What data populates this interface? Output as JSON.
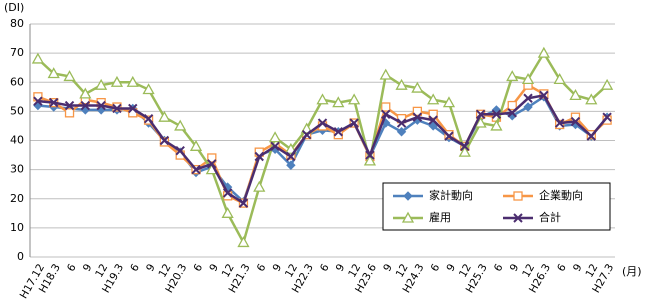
{
  "chart_data": {
    "type": "line",
    "y_label": "(DI)",
    "x_label": "(月)",
    "categories": [
      "H17.12",
      "H18.3",
      "6",
      "9",
      "12",
      "H19.3",
      "6",
      "9",
      "12",
      "H20.3",
      "6",
      "9",
      "12",
      "H21.3",
      "6",
      "9",
      "12",
      "H22.3",
      "6",
      "9",
      "12",
      "H23.6",
      "9",
      "12",
      "H24.3",
      "6",
      "9",
      "12",
      "H25.3",
      "6",
      "9",
      "12",
      "H26.3",
      "6",
      "9",
      "12",
      "H27.3"
    ],
    "series": [
      {
        "name": "家計動向",
        "color": "#4f81bd",
        "marker": "diamond",
        "values": [
          52,
          51.5,
          51,
          50.5,
          50.5,
          50.5,
          51,
          46,
          40,
          36,
          29,
          31,
          24,
          19,
          35,
          37,
          31.5,
          42,
          43.5,
          43,
          46,
          34.5,
          46,
          43,
          47,
          45,
          41,
          38,
          48,
          50.5,
          48.5,
          51.5,
          55,
          45,
          45.5,
          41.5,
          48
        ]
      },
      {
        "name": "企業動向",
        "color": "#f79646",
        "marker": "square",
        "values": [
          55,
          53,
          49.5,
          54,
          53,
          51.5,
          49.5,
          47,
          39.5,
          35,
          30,
          34,
          21,
          18.5,
          36,
          39,
          35,
          42,
          45,
          42,
          46,
          34.5,
          51.5,
          47.5,
          50,
          49,
          42,
          38,
          49,
          48,
          52,
          59,
          56,
          45.5,
          48,
          42,
          47
        ]
      },
      {
        "name": "雇用",
        "color": "#9bbb59",
        "marker": "triangle",
        "values": [
          68,
          63,
          62,
          56,
          59,
          60,
          60,
          57.5,
          48,
          45,
          38,
          30,
          15,
          5,
          24,
          41,
          37,
          44,
          54,
          53,
          54,
          33,
          62.5,
          59,
          58,
          54,
          53,
          36,
          46,
          45,
          62,
          61,
          70,
          61,
          55.5,
          54,
          59
        ]
      },
      {
        "name": "合計",
        "color": "#4b2d6f",
        "marker": "x",
        "values": [
          53.5,
          53,
          52,
          52,
          52,
          51,
          51,
          47.5,
          40,
          36.5,
          30,
          32,
          22,
          18.5,
          34.5,
          38,
          34.5,
          42,
          46,
          43,
          46,
          35,
          49,
          46,
          48,
          47,
          41.5,
          38,
          49,
          49,
          49.5,
          54.5,
          55.5,
          46,
          46.5,
          41.5,
          48
        ]
      }
    ],
    "ylim": [
      0,
      80
    ],
    "yticks": [
      0,
      10,
      20,
      30,
      40,
      50,
      60,
      70,
      80
    ],
    "grid": true
  }
}
